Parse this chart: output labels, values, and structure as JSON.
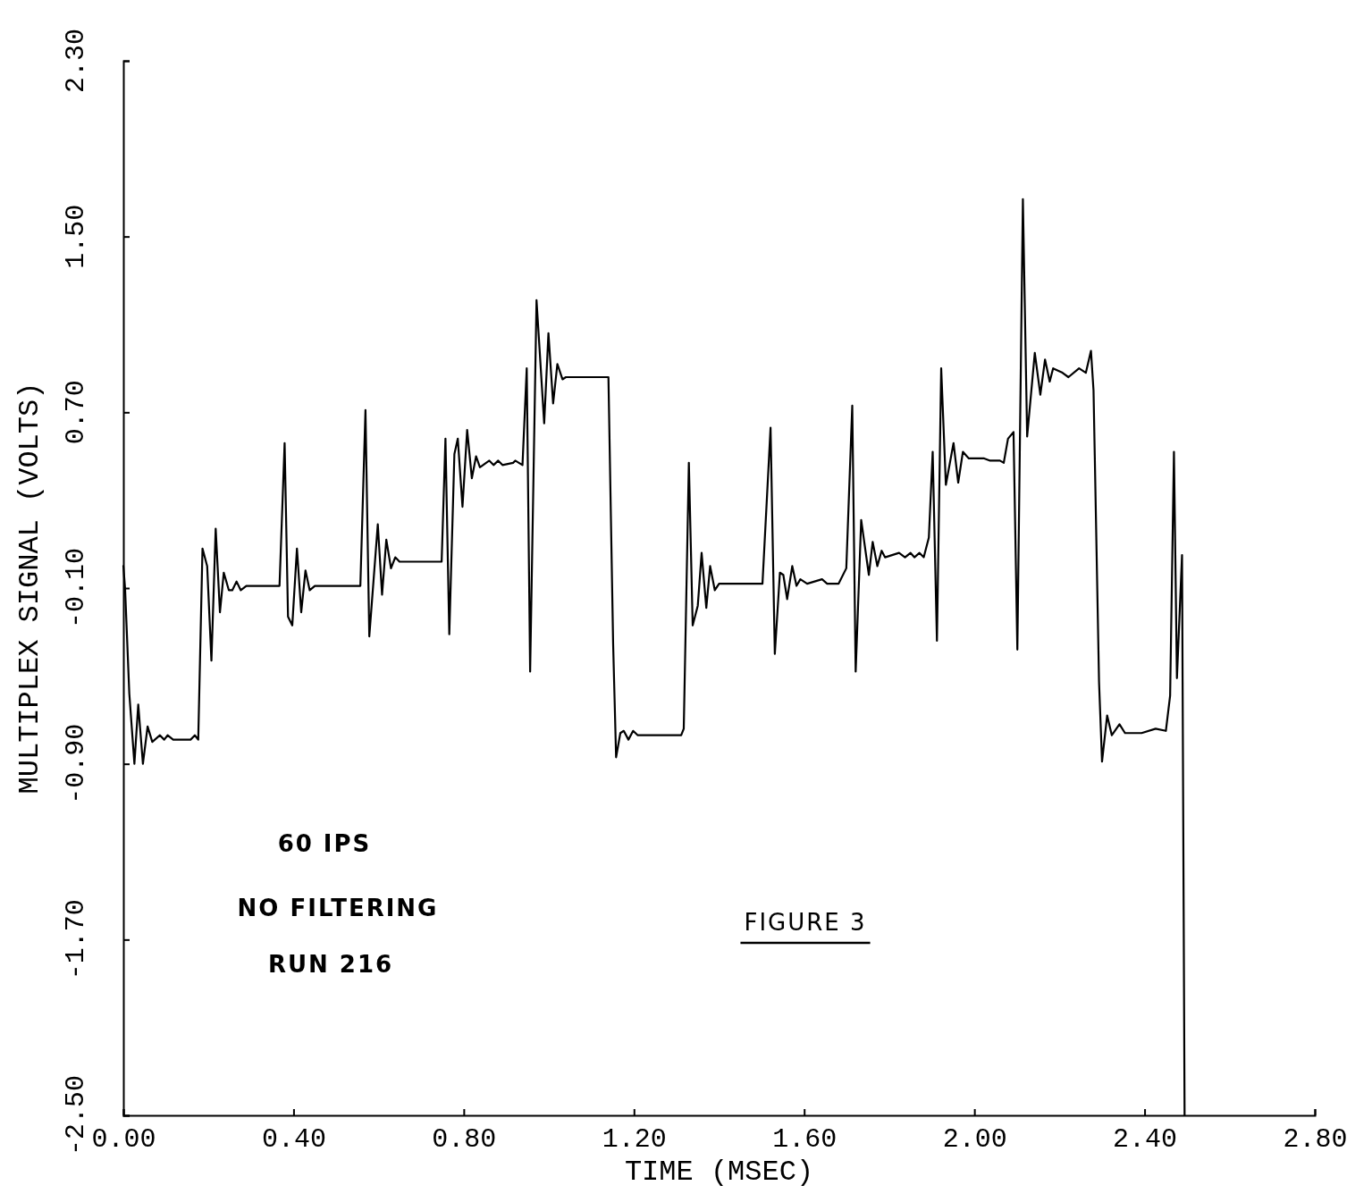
{
  "chart_data": {
    "type": "line",
    "xlabel": "TIME (MSEC)",
    "ylabel": "MULTIPLEX SIGNAL (VOLTS)",
    "annotations": [
      "60 IPS",
      "NO FILTERING",
      "RUN 216",
      "FIGURE 3"
    ],
    "xlim": [
      0,
      2.8
    ],
    "ylim": [
      -2.5,
      2.3
    ],
    "xticks": [
      {
        "value": 0,
        "label": "0.00"
      },
      {
        "value": 0.4,
        "label": "0.40"
      },
      {
        "value": 0.8,
        "label": "0.80"
      },
      {
        "value": 1.2,
        "label": "1.20"
      },
      {
        "value": 1.6,
        "label": "1.60"
      },
      {
        "value": 2.0,
        "label": "2.00"
      },
      {
        "value": 2.4,
        "label": "2.40"
      },
      {
        "value": 2.8,
        "label": "2.80"
      }
    ],
    "yticks": [
      {
        "value": -2.5,
        "label": "-2.50"
      },
      {
        "value": -1.7,
        "label": "-1.70"
      },
      {
        "value": -0.9,
        "label": "-0.90"
      },
      {
        "value": -0.1,
        "label": "-0.10"
      },
      {
        "value": 0.7,
        "label": "0.70"
      },
      {
        "value": 1.5,
        "label": "1.50"
      },
      {
        "value": 2.3,
        "label": "2.30"
      }
    ],
    "series": [
      {
        "color": "#000000",
        "x": [
          0,
          0.004,
          0.014,
          0.026,
          0.035,
          0.046,
          0.057,
          0.068,
          0.086,
          0.096,
          0.104,
          0.117,
          0.158,
          0.168,
          0.176,
          0.186,
          0.197,
          0.207,
          0.217,
          0.227,
          0.236,
          0.248,
          0.256,
          0.266,
          0.276,
          0.289,
          0.367,
          0.379,
          0.387,
          0.397,
          0.408,
          0.418,
          0.428,
          0.438,
          0.45,
          0.557,
          0.569,
          0.578,
          0.598,
          0.608,
          0.618,
          0.629,
          0.639,
          0.649,
          0.748,
          0.757,
          0.766,
          0.778,
          0.786,
          0.797,
          0.808,
          0.819,
          0.829,
          0.838,
          0.86,
          0.87,
          0.881,
          0.891,
          0.916,
          0.921,
          0.938,
          0.948,
          0.956,
          0.971,
          0.989,
          0.999,
          1.01,
          1.02,
          1.032,
          1.04,
          1.14,
          1.151,
          1.158,
          1.168,
          1.176,
          1.187,
          1.198,
          1.209,
          1.311,
          1.317,
          1.329,
          1.338,
          1.35,
          1.359,
          1.37,
          1.379,
          1.39,
          1.4,
          1.502,
          1.521,
          1.531,
          1.543,
          1.551,
          1.56,
          1.572,
          1.582,
          1.591,
          1.607,
          1.642,
          1.654,
          1.681,
          1.699,
          1.713,
          1.721,
          1.734,
          1.752,
          1.761,
          1.772,
          1.782,
          1.79,
          1.823,
          1.837,
          1.85,
          1.859,
          1.871,
          1.881,
          1.893,
          1.902,
          1.912,
          1.922,
          1.933,
          1.951,
          1.962,
          1.973,
          1.987,
          2.001,
          2.023,
          2.037,
          2.06,
          2.069,
          2.079,
          2.092,
          2.101,
          2.114,
          2.124,
          2.142,
          2.155,
          2.166,
          2.177,
          2.185,
          2.207,
          2.221,
          2.246,
          2.262,
          2.274,
          2.28,
          2.293,
          2.3,
          2.312,
          2.323,
          2.341,
          2.354,
          2.393,
          2.426,
          2.45,
          2.46,
          2.469,
          2.476,
          2.488,
          2.494
        ],
        "values": [
          0,
          -0.1,
          -0.58,
          -0.9,
          -0.63,
          -0.9,
          -0.73,
          -0.8,
          -0.77,
          -0.79,
          -0.77,
          -0.79,
          -0.79,
          -0.77,
          -0.79,
          0.08,
          0,
          -0.43,
          0.17,
          -0.21,
          -0.03,
          -0.11,
          -0.11,
          -0.07,
          -0.11,
          -0.09,
          -0.09,
          0.56,
          -0.23,
          -0.27,
          0.08,
          -0.21,
          -0.02,
          -0.11,
          -0.09,
          -0.09,
          0.71,
          -0.32,
          0.19,
          -0.13,
          0.12,
          -0.01,
          0.04,
          0.02,
          0.02,
          0.58,
          -0.31,
          0.51,
          0.58,
          0.27,
          0.62,
          0.4,
          0.5,
          0.45,
          0.48,
          0.46,
          0.48,
          0.46,
          0.47,
          0.48,
          0.46,
          0.9,
          -0.48,
          1.21,
          0.65,
          1.06,
          0.74,
          0.92,
          0.85,
          0.86,
          0.86,
          -0.35,
          -0.87,
          -0.76,
          -0.75,
          -0.79,
          -0.75,
          -0.77,
          -0.77,
          -0.74,
          0.47,
          -0.27,
          -0.18,
          0.06,
          -0.19,
          0,
          -0.11,
          -0.08,
          -0.08,
          0.63,
          -0.4,
          -0.03,
          -0.04,
          -0.15,
          0,
          -0.09,
          -0.06,
          -0.08,
          -0.06,
          -0.08,
          -0.08,
          -0.01,
          0.73,
          -0.48,
          0.21,
          -0.04,
          0.11,
          0,
          0.07,
          0.04,
          0.06,
          0.04,
          0.06,
          0.04,
          0.06,
          0.04,
          0.13,
          0.52,
          -0.34,
          0.9,
          0.37,
          0.56,
          0.38,
          0.52,
          0.49,
          0.49,
          0.49,
          0.48,
          0.48,
          0.47,
          0.58,
          0.61,
          -0.38,
          1.67,
          0.59,
          0.97,
          0.78,
          0.94,
          0.84,
          0.9,
          0.88,
          0.86,
          0.9,
          0.88,
          0.98,
          0.8,
          -0.53,
          -0.89,
          -0.68,
          -0.77,
          -0.72,
          -0.76,
          -0.76,
          -0.74,
          -0.75,
          -0.59,
          0.52,
          -0.51,
          0.05,
          -2.5
        ]
      }
    ]
  }
}
